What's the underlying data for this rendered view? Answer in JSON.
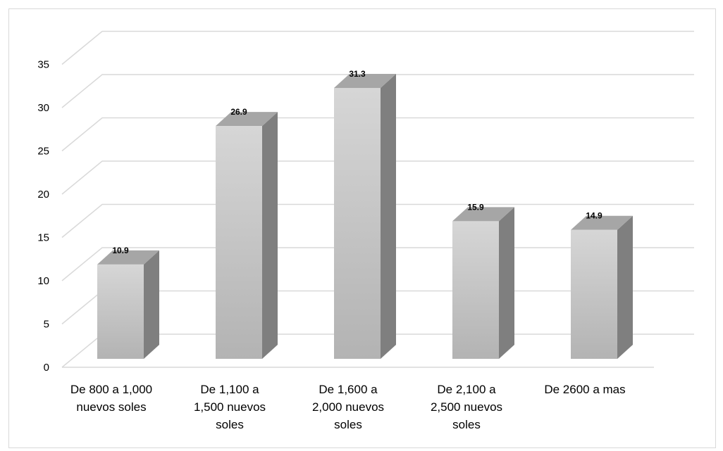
{
  "chart_data": {
    "type": "bar",
    "style": "3d-column",
    "categories": [
      [
        "De 800 a 1,000",
        "nuevos soles"
      ],
      [
        "De 1,100 a",
        "1,500 nuevos",
        "soles"
      ],
      [
        "De 1,600 a",
        "2,000 nuevos",
        "soles"
      ],
      [
        "De 2,100 a",
        "2,500 nuevos",
        "soles"
      ],
      [
        "De 2600 a mas"
      ]
    ],
    "values": [
      10.9,
      26.9,
      31.3,
      15.9,
      14.9
    ],
    "data_labels": [
      "10.9",
      "26.9",
      "31.3",
      "15.9",
      "14.9"
    ],
    "yticks": [
      "0",
      "5",
      "10",
      "15",
      "20",
      "25",
      "30",
      "35"
    ],
    "ylim": [
      0,
      35
    ],
    "grid": true,
    "legend": "none",
    "colors": {
      "bar_front_top": "#d6d6d6",
      "bar_front_bottom": "#b3b3b3",
      "bar_side": "#7f7f7f",
      "bar_top": "#a6a6a6",
      "gridline": "#d9d9d9"
    }
  }
}
